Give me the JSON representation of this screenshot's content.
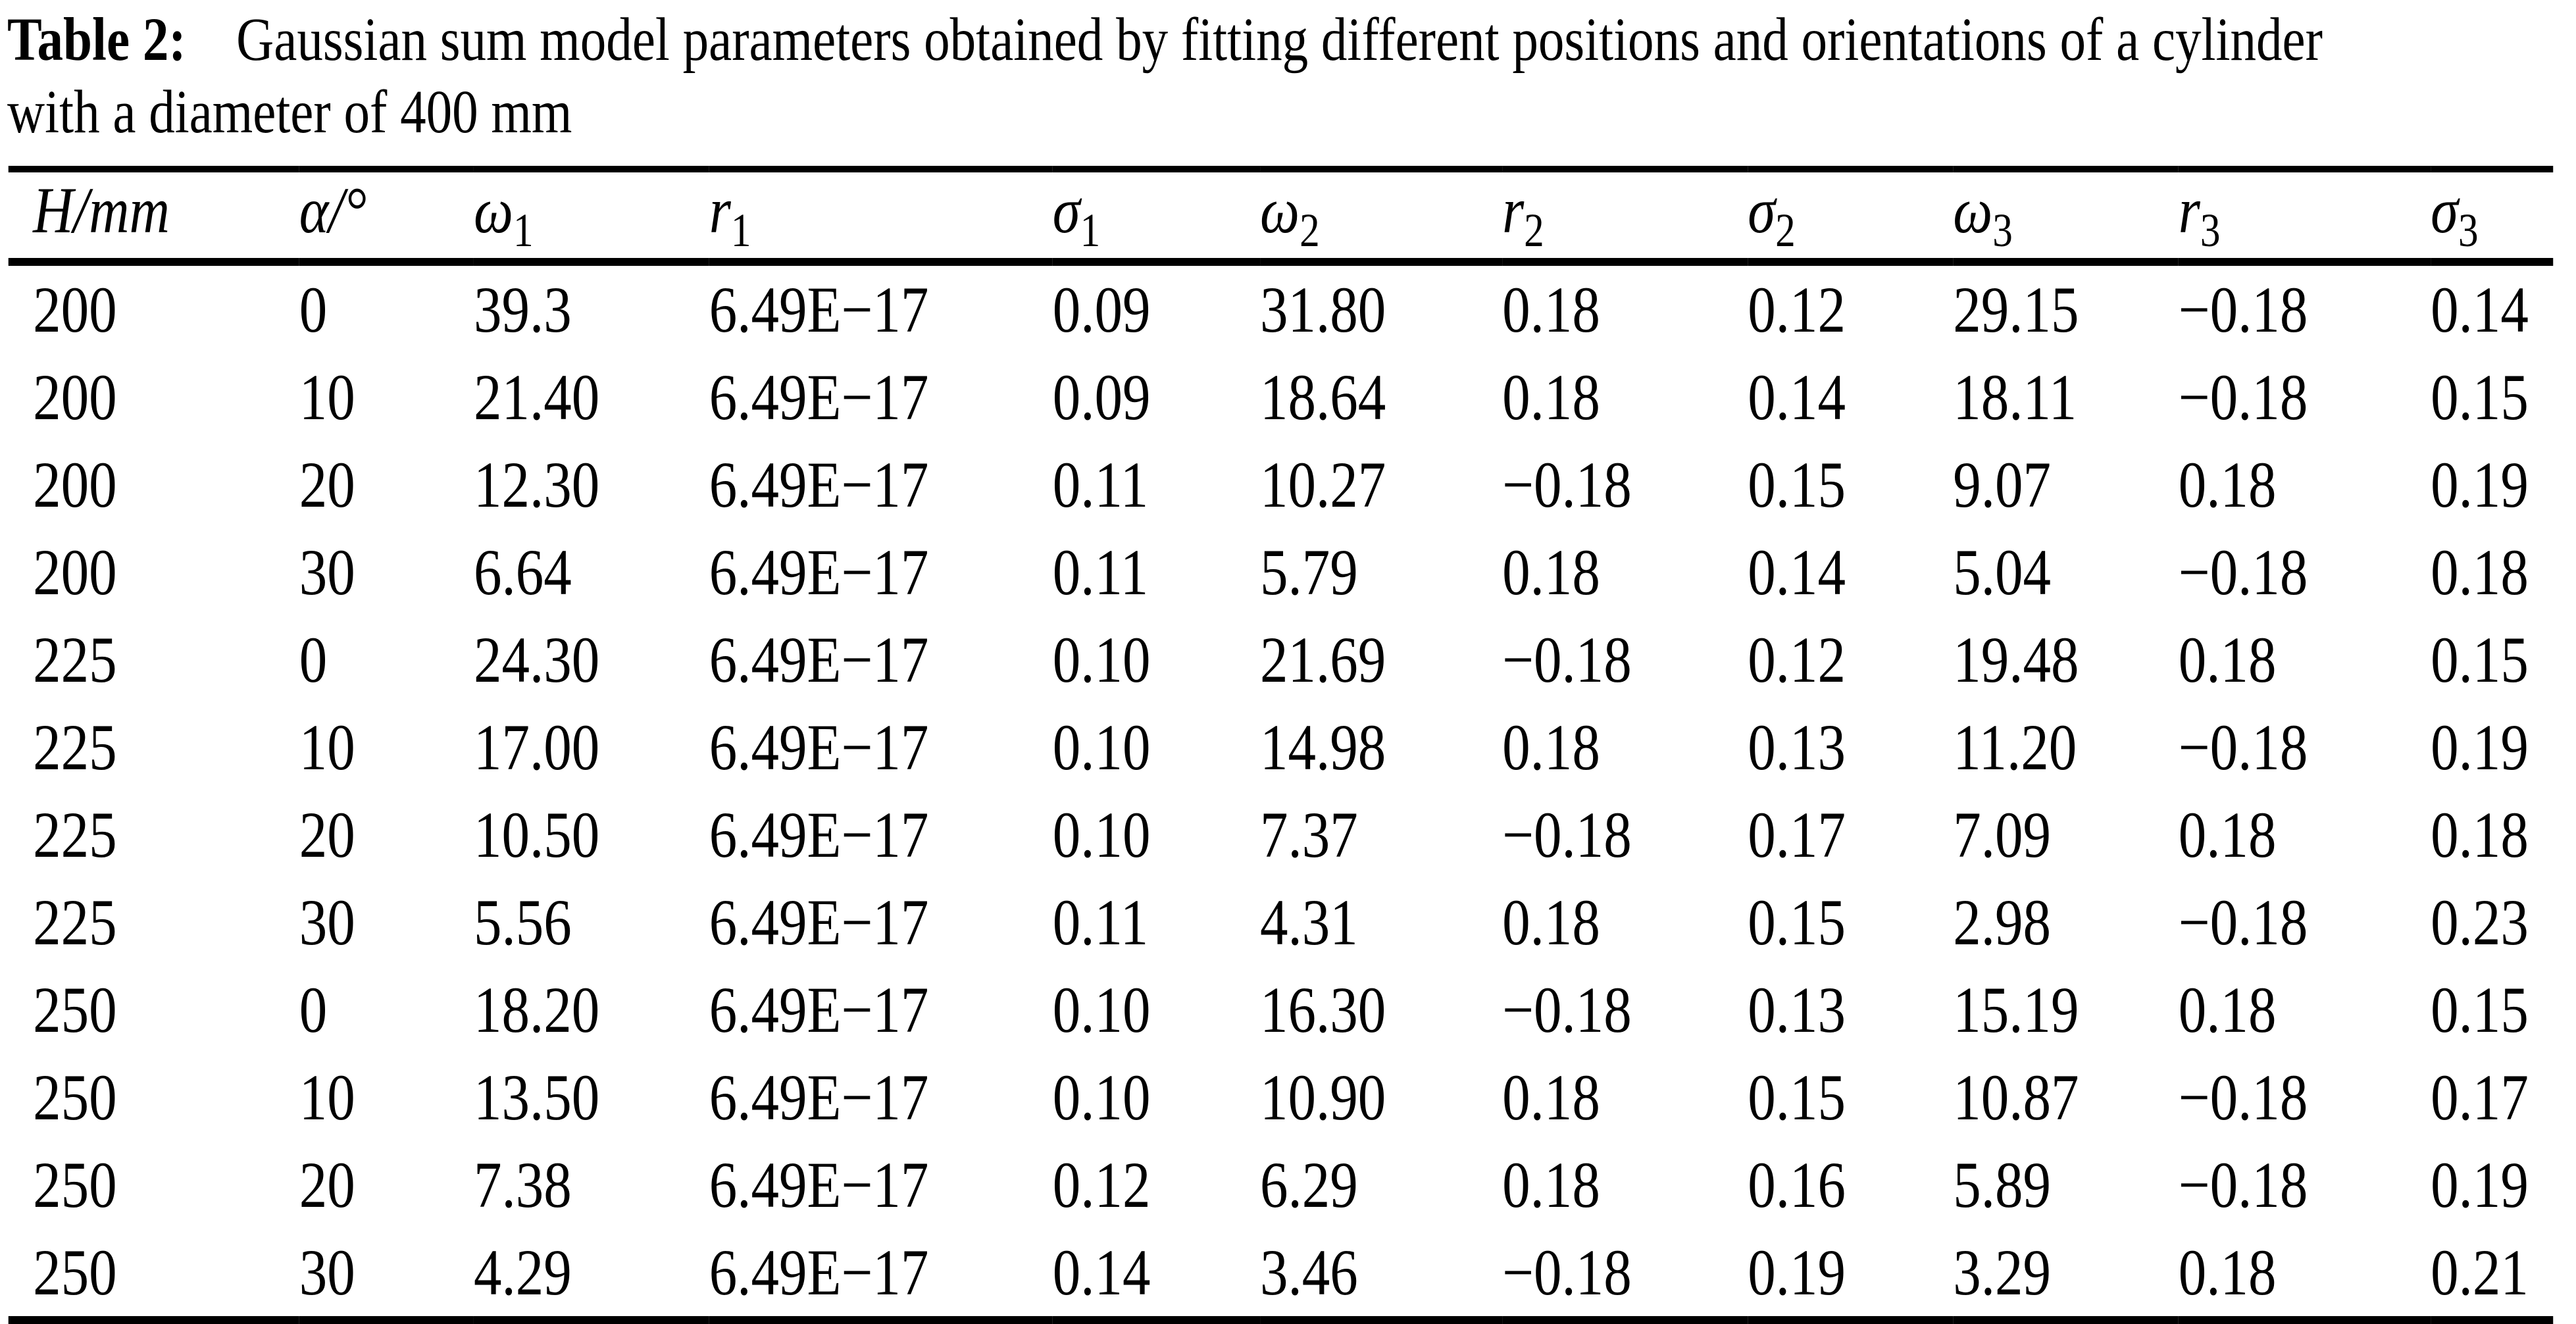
{
  "page": {
    "background": "#ffffff",
    "text_color": "#000000"
  },
  "caption": {
    "label": "Table 2:",
    "line1": "Gaussian sum model parameters obtained by fitting different positions and orientations of a cylinder",
    "line2": "with a diameter of 400 mm"
  },
  "table": {
    "columns": [
      {
        "var": "H",
        "sub": "",
        "suffix": "/mm"
      },
      {
        "var": "α",
        "sub": "",
        "suffix": "/°"
      },
      {
        "var": "ω",
        "sub": "1",
        "suffix": ""
      },
      {
        "var": "r",
        "sub": "1",
        "suffix": ""
      },
      {
        "var": "σ",
        "sub": "1",
        "suffix": ""
      },
      {
        "var": "ω",
        "sub": "2",
        "suffix": ""
      },
      {
        "var": "r",
        "sub": "2",
        "suffix": ""
      },
      {
        "var": "σ",
        "sub": "2",
        "suffix": ""
      },
      {
        "var": "ω",
        "sub": "3",
        "suffix": ""
      },
      {
        "var": "r",
        "sub": "3",
        "suffix": ""
      },
      {
        "var": "σ",
        "sub": "3",
        "suffix": ""
      }
    ],
    "rows": [
      [
        "200",
        "0",
        "39.3",
        "6.49E−17",
        "0.09",
        "31.80",
        "0.18",
        "0.12",
        "29.15",
        "−0.18",
        "0.14"
      ],
      [
        "200",
        "10",
        "21.40",
        "6.49E−17",
        "0.09",
        "18.64",
        "0.18",
        "0.14",
        "18.11",
        "−0.18",
        "0.15"
      ],
      [
        "200",
        "20",
        "12.30",
        "6.49E−17",
        "0.11",
        "10.27",
        "−0.18",
        "0.15",
        "9.07",
        "0.18",
        "0.19"
      ],
      [
        "200",
        "30",
        "6.64",
        "6.49E−17",
        "0.11",
        "5.79",
        "0.18",
        "0.14",
        "5.04",
        "−0.18",
        "0.18"
      ],
      [
        "225",
        "0",
        "24.30",
        "6.49E−17",
        "0.10",
        "21.69",
        "−0.18",
        "0.12",
        "19.48",
        "0.18",
        "0.15"
      ],
      [
        "225",
        "10",
        "17.00",
        "6.49E−17",
        "0.10",
        "14.98",
        "0.18",
        "0.13",
        "11.20",
        "−0.18",
        "0.19"
      ],
      [
        "225",
        "20",
        "10.50",
        "6.49E−17",
        "0.10",
        "7.37",
        "−0.18",
        "0.17",
        "7.09",
        "0.18",
        "0.18"
      ],
      [
        "225",
        "30",
        "5.56",
        "6.49E−17",
        "0.11",
        "4.31",
        "0.18",
        "0.15",
        "2.98",
        "−0.18",
        "0.23"
      ],
      [
        "250",
        "0",
        "18.20",
        "6.49E−17",
        "0.10",
        "16.30",
        "−0.18",
        "0.13",
        "15.19",
        "0.18",
        "0.15"
      ],
      [
        "250",
        "10",
        "13.50",
        "6.49E−17",
        "0.10",
        "10.90",
        "0.18",
        "0.15",
        "10.87",
        "−0.18",
        "0.17"
      ],
      [
        "250",
        "20",
        "7.38",
        "6.49E−17",
        "0.12",
        "6.29",
        "0.18",
        "0.16",
        "5.89",
        "−0.18",
        "0.19"
      ],
      [
        "250",
        "30",
        "4.29",
        "6.49E−17",
        "0.14",
        "3.46",
        "−0.18",
        "0.19",
        "3.29",
        "0.18",
        "0.21"
      ]
    ]
  }
}
